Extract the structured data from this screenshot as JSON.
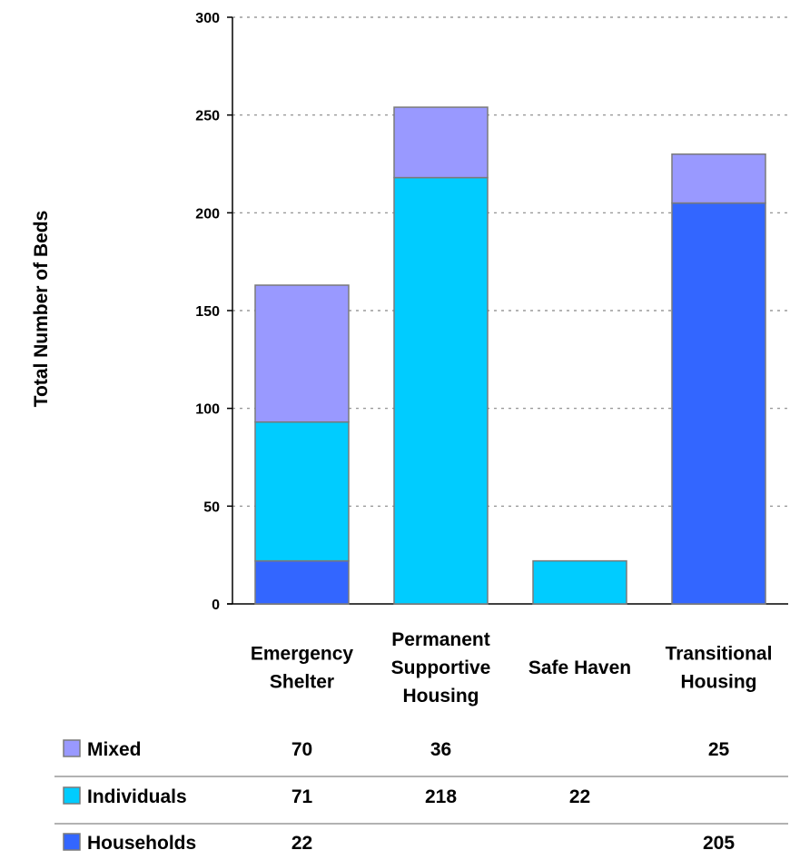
{
  "chart_data": {
    "type": "bar",
    "stacked": true,
    "title": "",
    "xlabel": "",
    "ylabel": "Total Number of Beds",
    "ylim": [
      0,
      300
    ],
    "yticks": [
      0,
      50,
      100,
      150,
      200,
      250,
      300
    ],
    "grid": "horizontal-dashed",
    "categories": [
      [
        "Emergency",
        "Shelter"
      ],
      [
        "Permanent",
        "Supportive",
        "Housing"
      ],
      [
        "Safe Haven"
      ],
      [
        "Transitional",
        "Housing"
      ]
    ],
    "series": [
      {
        "name": "Households",
        "color": "#3366ff",
        "values": [
          22,
          null,
          null,
          205
        ]
      },
      {
        "name": "Individuals",
        "color": "#00ccff",
        "values": [
          71,
          218,
          22,
          null
        ]
      },
      {
        "name": "Mixed",
        "color": "#9999ff",
        "values": [
          70,
          36,
          null,
          25
        ]
      }
    ],
    "legend": "data-table-below"
  }
}
